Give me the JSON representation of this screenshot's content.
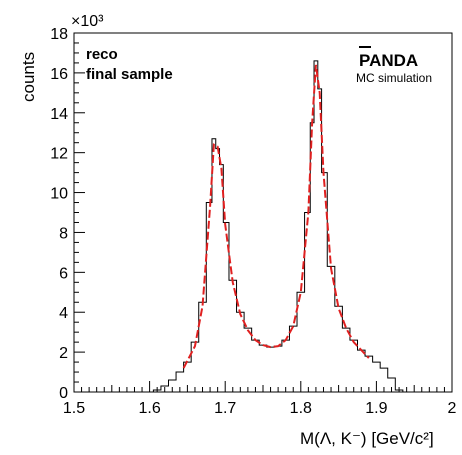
{
  "chart_data": {
    "type": "line",
    "xlabel": "M(Λ, K⁻) [GeV/c²]",
    "ylabel": "counts",
    "y_multiplier": "×10³",
    "xlim": [
      1.5,
      2.0
    ],
    "ylim": [
      0,
      18
    ],
    "x_ticks": [
      1.5,
      1.6,
      1.7,
      1.8,
      1.9,
      2.0
    ],
    "x_tick_labels": [
      "1.5",
      "1.6",
      "1.7",
      "1.8",
      "1.9",
      "2"
    ],
    "y_ticks": [
      0,
      2,
      4,
      6,
      8,
      10,
      12,
      14,
      16,
      18
    ],
    "y_tick_labels": [
      "0",
      "2",
      "4",
      "6",
      "8",
      "10",
      "12",
      "14",
      "16",
      "18"
    ],
    "annotations": {
      "left_line1": "reco",
      "left_line2": "final sample",
      "brand": "PANDA",
      "brand_sub": "MC simulation"
    },
    "grid": false,
    "series": [
      {
        "style": "histogram",
        "color": "#000000",
        "x": [
          1.61,
          1.62,
          1.63,
          1.64,
          1.65,
          1.66,
          1.67,
          1.68,
          1.685,
          1.69,
          1.695,
          1.7,
          1.71,
          1.72,
          1.73,
          1.74,
          1.75,
          1.76,
          1.77,
          1.78,
          1.79,
          1.8,
          1.81,
          1.815,
          1.82,
          1.825,
          1.83,
          1.84,
          1.85,
          1.86,
          1.87,
          1.88,
          1.89,
          1.9,
          1.91,
          1.92,
          1.93
        ],
        "values": [
          0.1,
          0.3,
          0.6,
          1.0,
          1.5,
          2.5,
          4.5,
          9.5,
          12.7,
          12.2,
          11.4,
          8.5,
          5.6,
          4.0,
          3.2,
          2.6,
          2.35,
          2.25,
          2.3,
          2.6,
          3.3,
          5.0,
          9.0,
          13.5,
          16.6,
          15.2,
          11.0,
          6.3,
          4.3,
          3.2,
          2.6,
          2.1,
          1.8,
          1.5,
          1.2,
          0.7,
          0.1
        ]
      },
      {
        "style": "fit-dashed",
        "color": "#e02020",
        "x": [
          1.645,
          1.66,
          1.67,
          1.68,
          1.685,
          1.69,
          1.695,
          1.7,
          1.71,
          1.72,
          1.73,
          1.74,
          1.75,
          1.76,
          1.77,
          1.78,
          1.79,
          1.8,
          1.81,
          1.815,
          1.82,
          1.825,
          1.83,
          1.84,
          1.85,
          1.86,
          1.87,
          1.88,
          1.89
        ],
        "values": [
          1.2,
          2.3,
          4.3,
          9.3,
          12.4,
          12.3,
          11.2,
          8.4,
          5.5,
          3.9,
          3.1,
          2.6,
          2.35,
          2.25,
          2.3,
          2.6,
          3.3,
          5.0,
          9.0,
          13.5,
          16.4,
          15.0,
          11.0,
          6.2,
          4.2,
          3.2,
          2.5,
          2.1,
          1.7
        ]
      }
    ]
  }
}
